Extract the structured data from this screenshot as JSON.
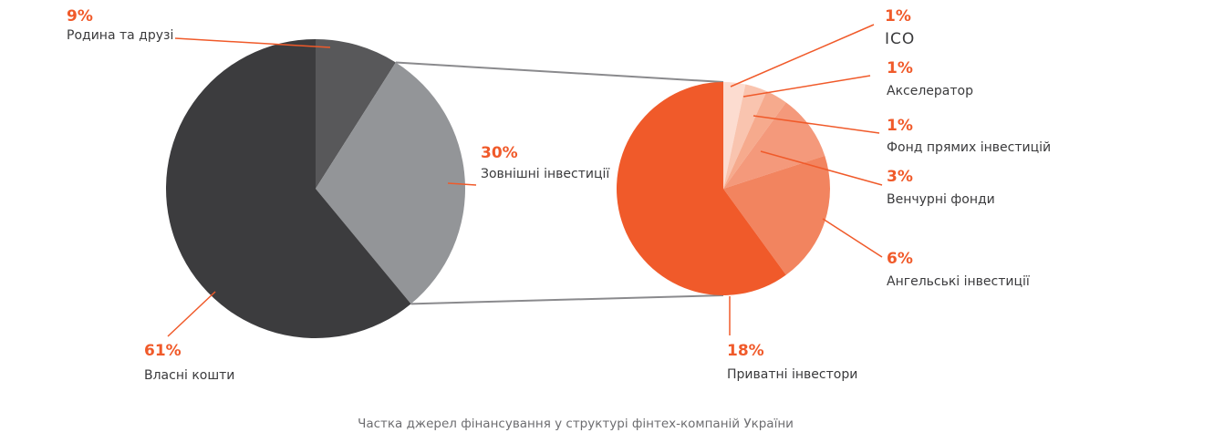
{
  "chart_data": [
    {
      "type": "pie",
      "slices": [
        {
          "label": "Родина та друзі",
          "value": 9,
          "pct_label": "9%",
          "color": "#58585a"
        },
        {
          "label": "Зовнішні інвестиції",
          "value": 30,
          "pct_label": "30%",
          "color": "#939598"
        },
        {
          "label": "Власні кошти",
          "value": 61,
          "pct_label": "61%",
          "color": "#3c3c3e"
        }
      ]
    },
    {
      "type": "pie",
      "slices": [
        {
          "label": "ICO",
          "value": 1,
          "pct_label": "1%",
          "color": "#fcdcd0"
        },
        {
          "label": "Акселератор",
          "value": 1,
          "pct_label": "1%",
          "color": "#f9c4af"
        },
        {
          "label": "Фонд прямих інвестицій",
          "value": 1,
          "pct_label": "1%",
          "color": "#f6aa8d"
        },
        {
          "label": "Венчурні фонди",
          "value": 3,
          "pct_label": "3%",
          "color": "#f4997b"
        },
        {
          "label": "Ангельські інвестиції",
          "value": 6,
          "pct_label": "6%",
          "color": "#f2845f"
        },
        {
          "label": "Приватні інвестори",
          "value": 18,
          "pct_label": "18%",
          "color": "#f05a2a"
        }
      ]
    }
  ],
  "caption": "Частка джерел фінансування у структурі фінтех-компаній України",
  "colors": {
    "accent": "#f05a2a",
    "label_text": "#3a3a3c",
    "caption_text": "#6d6d70",
    "connector": "#8a8a8d"
  }
}
